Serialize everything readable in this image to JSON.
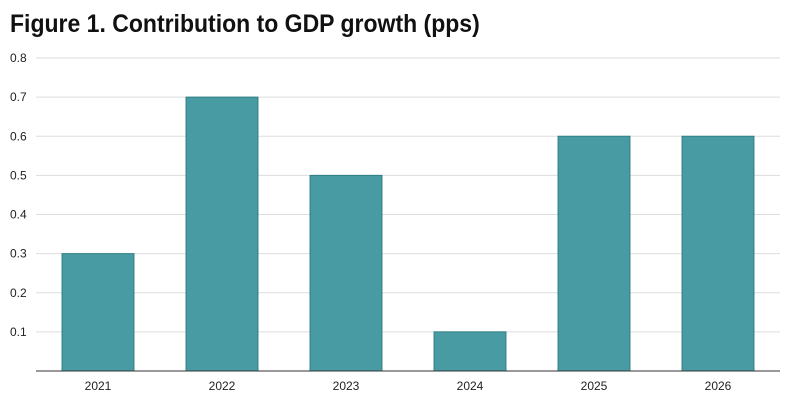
{
  "chart_data": {
    "type": "bar",
    "title": "Figure 1. Contribution to GDP growth (pps)",
    "categories": [
      "2021",
      "2022",
      "2023",
      "2024",
      "2025",
      "2026"
    ],
    "values": [
      0.3,
      0.7,
      0.5,
      0.1,
      0.6,
      0.6
    ],
    "xlabel": "",
    "ylabel": "",
    "ylim": [
      0,
      0.8
    ],
    "yticks": [
      "0.1",
      "0.2",
      "0.3",
      "0.4",
      "0.5",
      "0.6",
      "0.7",
      "0.8"
    ],
    "grid": true,
    "legend": "none",
    "colors": {
      "bar": "#489ba3",
      "bar_edge": "#2f7f86",
      "grid": "#dddddd",
      "axis": "#333333"
    }
  }
}
